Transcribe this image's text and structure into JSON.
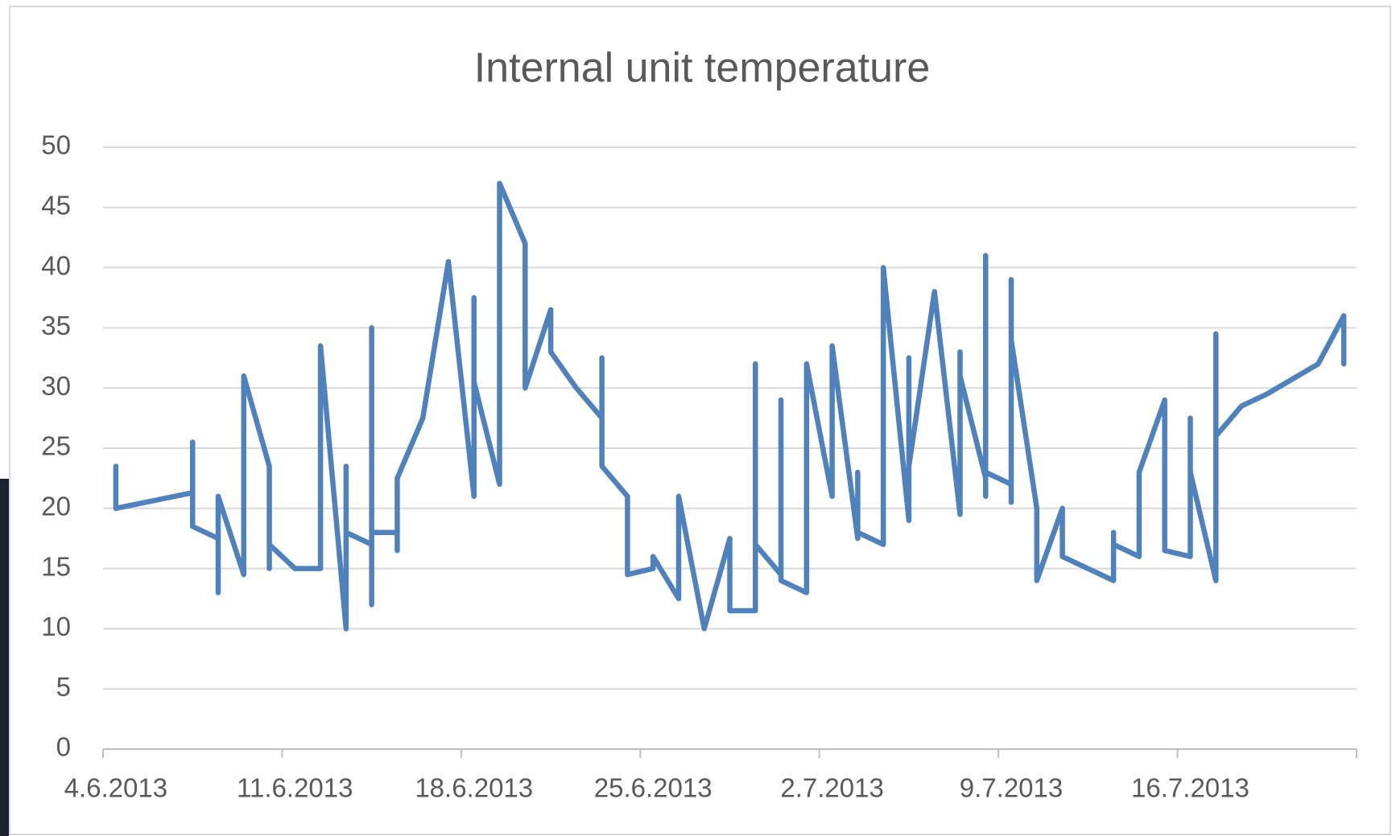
{
  "chart_data": {
    "type": "line",
    "title": "Internal unit temperature",
    "color": "#4f81bd",
    "grid": true,
    "x": [
      "2013-06-04",
      "2013-06-04",
      "2013-06-07",
      "2013-06-07",
      "2013-06-07",
      "2013-06-08",
      "2013-06-08",
      "2013-06-08",
      "2013-06-09",
      "2013-06-09",
      "2013-06-10",
      "2013-06-10",
      "2013-06-10",
      "2013-06-11",
      "2013-06-12",
      "2013-06-12",
      "2013-06-13",
      "2013-06-13",
      "2013-06-13",
      "2013-06-14",
      "2013-06-14",
      "2013-06-14",
      "2013-06-14",
      "2013-06-15",
      "2013-06-15",
      "2013-06-15",
      "2013-06-16",
      "2013-06-17",
      "2013-06-18",
      "2013-06-18",
      "2013-06-18",
      "2013-06-19",
      "2013-06-19",
      "2013-06-20",
      "2013-06-20",
      "2013-06-21",
      "2013-06-21",
      "2013-06-22",
      "2013-06-23",
      "2013-06-23",
      "2013-06-23",
      "2013-06-24",
      "2013-06-24",
      "2013-06-25",
      "2013-06-25",
      "2013-06-26",
      "2013-06-26",
      "2013-06-27",
      "2013-06-28",
      "2013-06-28",
      "2013-06-29",
      "2013-06-29",
      "2013-06-29",
      "2013-06-30",
      "2013-06-30",
      "2013-06-30",
      "2013-07-01",
      "2013-07-01",
      "2013-07-02",
      "2013-07-02",
      "2013-07-03",
      "2013-07-03",
      "2013-07-03",
      "2013-07-04",
      "2013-07-04",
      "2013-07-05",
      "2013-07-05",
      "2013-07-05",
      "2013-07-06",
      "2013-07-07",
      "2013-07-07",
      "2013-07-07",
      "2013-07-08",
      "2013-07-08",
      "2013-07-08",
      "2013-07-08",
      "2013-07-09",
      "2013-07-09",
      "2013-07-09",
      "2013-07-09",
      "2013-07-10",
      "2013-07-10",
      "2013-07-11",
      "2013-07-11",
      "2013-07-13",
      "2013-07-13",
      "2013-07-13",
      "2013-07-14",
      "2013-07-14",
      "2013-07-15",
      "2013-07-15",
      "2013-07-16",
      "2013-07-16",
      "2013-07-16",
      "2013-07-17",
      "2013-07-17",
      "2013-07-17",
      "2013-07-18",
      "2013-07-19",
      "2013-07-21",
      "2013-07-22",
      "2013-07-22"
    ],
    "values": [
      23.5,
      20,
      21.3,
      25.5,
      18.5,
      17.5,
      13,
      21,
      14.5,
      31,
      23.5,
      15,
      17,
      15,
      15,
      33.5,
      10,
      23.5,
      18,
      17,
      35,
      12,
      18,
      18,
      16.5,
      22.5,
      27.5,
      40.5,
      21,
      37.5,
      30.5,
      22,
      47,
      42,
      30,
      36.5,
      33,
      30,
      27.5,
      32.5,
      23.5,
      21,
      14.5,
      15,
      16,
      12.5,
      21,
      10,
      17.5,
      11.5,
      11.5,
      32,
      17,
      14.5,
      29,
      14,
      13,
      32,
      21,
      33.5,
      17.5,
      23,
      18,
      17,
      40,
      19,
      32.5,
      23.5,
      38,
      19.5,
      33,
      31,
      22.5,
      21,
      41,
      23,
      22,
      20.5,
      39,
      34,
      20,
      14,
      20,
      16,
      14,
      18,
      17,
      16,
      23,
      29,
      16.5,
      16,
      27.5,
      23,
      14,
      34.5,
      26,
      28.5,
      29.5,
      32,
      36,
      32
    ],
    "xlim": [
      "2013-06-04",
      "2013-07-23"
    ],
    "xticks": [
      {
        "value": "2013-06-04",
        "label": "4.6.2013"
      },
      {
        "value": "2013-06-11",
        "label": "11.6.2013"
      },
      {
        "value": "2013-06-18",
        "label": "18.6.2013"
      },
      {
        "value": "2013-06-25",
        "label": "25.6.2013"
      },
      {
        "value": "2013-07-02",
        "label": "2.7.2013"
      },
      {
        "value": "2013-07-09",
        "label": "9.7.2013"
      },
      {
        "value": "2013-07-16",
        "label": "16.7.2013"
      }
    ],
    "ylim": [
      0,
      50
    ],
    "yticks": [
      0,
      5,
      10,
      15,
      20,
      25,
      30,
      35,
      40,
      45,
      50
    ]
  }
}
